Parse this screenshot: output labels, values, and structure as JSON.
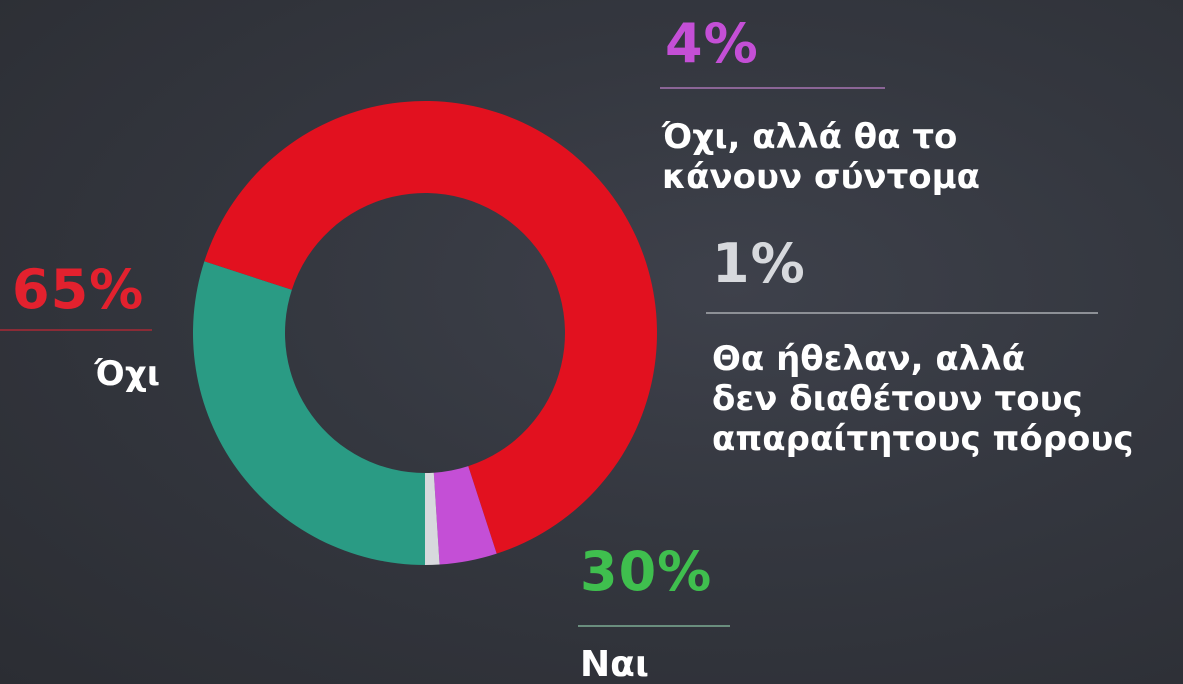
{
  "chart_data": {
    "type": "pie",
    "title": "",
    "categories": [
      "Όχι",
      "Όχι, αλλά θα το κάνουν σύντομα",
      "Θα ήθελαν, αλλά δεν διαθέτουν τους απαραίτητους πόρους",
      "Ναι"
    ],
    "values": [
      65,
      4,
      1,
      30
    ],
    "unit": "%",
    "display_values": [
      "65%",
      "4%",
      "1%",
      "30%"
    ],
    "label_lines": [
      [
        "Όχι"
      ],
      [
        "Όχι, αλλά θα το",
        "κάνουν σύντομα"
      ],
      [
        "Θα ήθελαν, αλλά",
        "δεν διαθέτουν τους",
        "απαραίτητους πόρους"
      ],
      [
        "Ναι"
      ]
    ],
    "colors": [
      "#e2111f",
      "#c44fd6",
      "#d7d9dd",
      "#2a9b84"
    ],
    "value_colors": [
      "#e3212e",
      "#c44fd6",
      "#d7d9dd",
      "#3fbf4e"
    ],
    "donut": true,
    "legend": "none"
  }
}
